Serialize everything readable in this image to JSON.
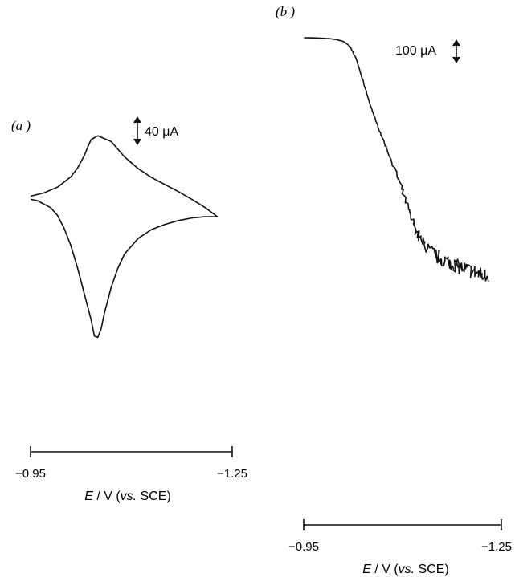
{
  "chart_data": [
    {
      "type": "line",
      "panel_label": "(a )",
      "current_scale_label": "40 μA",
      "current_scale_uA": 40,
      "xlim": [
        -0.95,
        -1.25
      ],
      "x_tick_labels": [
        "−0.95",
        "−1.25"
      ],
      "axis_title": {
        "E": "E",
        "unit": " / V (",
        "vs": "vs.",
        "ref": " SCE)"
      },
      "series": [
        {
          "x": [
            -0.95,
            -0.97,
            -0.99,
            -1.01,
            -1.02,
            -1.03,
            -1.035,
            -1.04,
            -1.05,
            -1.07,
            -1.09,
            -1.11,
            -1.13,
            -1.15,
            -1.17,
            -1.19,
            -1.21,
            -1.228,
            -1.21,
            -1.19,
            -1.17,
            -1.15,
            -1.13,
            -1.11,
            -1.09,
            -1.08,
            -1.07,
            -1.06,
            -1.055,
            -1.05,
            -1.045,
            -1.04,
            -1.03,
            -1.02,
            -1.01,
            -1.0,
            -0.99,
            -0.98,
            -0.96,
            -0.95
          ],
          "y_uA": [
            -8,
            -3,
            6,
            22,
            36,
            55,
            68,
            80,
            86,
            77,
            53,
            35,
            21,
            10,
            -1,
            -13,
            -26,
            -40,
            -40,
            -42,
            -46,
            -52,
            -60,
            -74,
            -98,
            -120,
            -150,
            -190,
            -215,
            -228,
            -226,
            -200,
            -160,
            -120,
            -85,
            -58,
            -38,
            -26,
            -15,
            -13
          ]
        }
      ]
    },
    {
      "type": "line",
      "panel_label": "(b )",
      "current_scale_label": "100 μA",
      "current_scale_uA": 100,
      "xlim": [
        -0.95,
        -1.25
      ],
      "x_tick_labels": [
        "−0.95",
        "−1.25"
      ],
      "axis_title": {
        "E": "E",
        "unit": " / V (",
        "vs": "vs.",
        "ref": " SCE)"
      },
      "series": [
        {
          "x": [
            -0.95,
            -0.97,
            -0.99,
            -1.0,
            -1.01,
            -1.02,
            -1.03,
            -1.04,
            -1.05,
            -1.06,
            -1.07,
            -1.08,
            -1.09,
            -1.1,
            -1.11,
            -1.12,
            -1.13,
            -1.14,
            -1.15,
            -1.16,
            -1.17,
            -1.18,
            -1.19,
            -1.2,
            -1.21,
            -1.22,
            -1.23
          ],
          "y_uA": [
            0,
            -1,
            -4,
            -8,
            -15,
            -35,
            -90,
            -180,
            -270,
            -350,
            -420,
            -490,
            -560,
            -640,
            -720,
            -800,
            -850,
            -880,
            -905,
            -920,
            -930,
            -945,
            -955,
            -965,
            -975,
            -985,
            -990
          ],
          "noise_uA": [
            0,
            0,
            0,
            0,
            0,
            0,
            0,
            1,
            1,
            2,
            3,
            4,
            6,
            8,
            12,
            18,
            25,
            30,
            30,
            30,
            30,
            30,
            30,
            30,
            30,
            30,
            30
          ]
        }
      ]
    }
  ]
}
